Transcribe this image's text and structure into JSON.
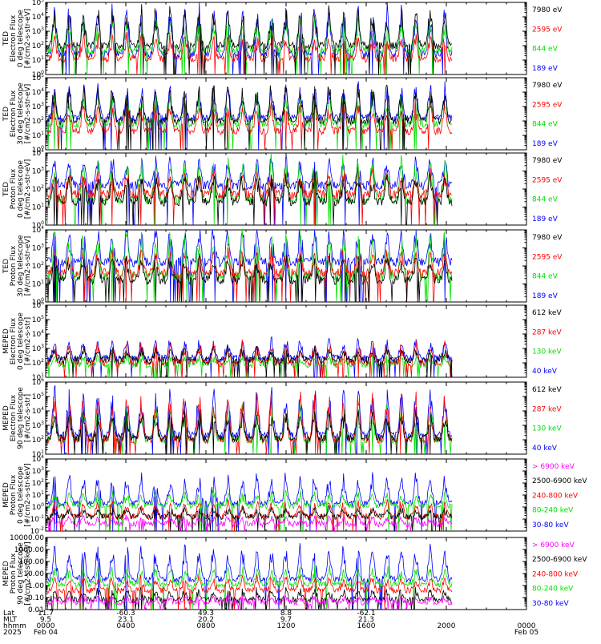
{
  "colors": {
    "blue": "#0000ff",
    "red": "#ff0000",
    "green": "#00e000",
    "black": "#000000",
    "magenta": "#ff00ff"
  },
  "chart_data": [
    {
      "type": "line",
      "ylabel_lines": [
        "TED",
        "Electron Flux",
        "0 deg telescope",
        "[#/cm2-s-str-eV]"
      ],
      "yscale": "log",
      "y_ticks": [
        "10^0",
        "10^1",
        "10^2",
        "10^3",
        "10^4",
        "10^5"
      ],
      "ylim": [
        1,
        100000
      ],
      "series": [
        {
          "name": "7980 eV",
          "color": "black",
          "base": 2.0,
          "peak": 2.3
        },
        {
          "name": "2595 eV",
          "color": "red",
          "base": 1.1,
          "peak": 1.5
        },
        {
          "name": "844 eV",
          "color": "green",
          "base": 1.7,
          "peak": 1.9
        },
        {
          "name": "189 eV",
          "color": "blue",
          "base": 1.4,
          "peak": 3.0
        }
      ]
    },
    {
      "type": "line",
      "ylabel_lines": [
        "TED",
        "Electron Flux",
        "30 deg telescope",
        "[#/cm2-s-str-eV]"
      ],
      "yscale": "log",
      "y_ticks": [
        "10^0",
        "10^1",
        "10^2",
        "10^3",
        "10^4",
        "10^5"
      ],
      "ylim": [
        1,
        100000
      ],
      "series": [
        {
          "name": "7980 eV",
          "color": "black",
          "base": 2.0,
          "peak": 2.2
        },
        {
          "name": "2595 eV",
          "color": "red",
          "base": 1.3,
          "peak": 1.7
        },
        {
          "name": "844 eV",
          "color": "green",
          "base": 1.8,
          "peak": 1.8
        },
        {
          "name": "189 eV",
          "color": "blue",
          "base": 2.2,
          "peak": 2.0
        }
      ]
    },
    {
      "type": "line",
      "ylabel_lines": [
        "TED",
        "Proton Flux",
        "0 deg telescope",
        "[#/cm2-s-str-eV]"
      ],
      "yscale": "log",
      "y_ticks": [
        "10^0",
        "10^1",
        "10^2",
        "10^3",
        "10^4"
      ],
      "ylim": [
        1,
        10000
      ],
      "series": [
        {
          "name": "7980 eV",
          "color": "black",
          "base": 1.3,
          "peak": 1.3
        },
        {
          "name": "2595 eV",
          "color": "red",
          "base": 1.7,
          "peak": 1.2
        },
        {
          "name": "844 eV",
          "color": "green",
          "base": 1.4,
          "peak": 2.1
        },
        {
          "name": "189 eV",
          "color": "blue",
          "base": 2.2,
          "peak": 1.4
        }
      ]
    },
    {
      "type": "line",
      "ylabel_lines": [
        "TED",
        "Proton Flux",
        "30 deg telescope",
        "[#/cm2-s-str-eV]"
      ],
      "yscale": "log",
      "y_ticks": [
        "10^0",
        "10^1",
        "10^2",
        "10^3",
        "10^4"
      ],
      "ylim": [
        1,
        10000
      ],
      "series": [
        {
          "name": "7980 eV",
          "color": "black",
          "base": 1.2,
          "peak": 1.2
        },
        {
          "name": "2595 eV",
          "color": "red",
          "base": 1.6,
          "peak": 1.1
        },
        {
          "name": "844 eV",
          "color": "green",
          "base": 1.4,
          "peak": 2.2
        },
        {
          "name": "189 eV",
          "color": "blue",
          "base": 2.2,
          "peak": 1.7
        }
      ]
    },
    {
      "type": "line",
      "ylabel_lines": [
        "MEPED",
        "Electron Flux",
        "0 deg telescope",
        "[#/cm2-s-str]"
      ],
      "yscale": "log",
      "y_ticks": [
        "10^1",
        "10^2",
        "10^3",
        "10^4",
        "10^5",
        "10^6"
      ],
      "ylim": [
        10,
        1000000
      ],
      "series": [
        {
          "name": "612 keV",
          "color": "black",
          "base": 2.2,
          "peak": 0.7
        },
        {
          "name": "287 keV",
          "color": "red",
          "base": 2.0,
          "peak": 1.2
        },
        {
          "name": "130 keV",
          "color": "green",
          "base": 1.9,
          "peak": 0.5
        },
        {
          "name": "40 keV",
          "color": "blue",
          "base": 2.3,
          "peak": 1.2
        }
      ]
    },
    {
      "type": "line",
      "ylabel_lines": [
        "MEPED",
        "Electron Flux",
        "90 deg telescope",
        "[#/cm2-s-str]"
      ],
      "yscale": "log",
      "y_ticks": [
        "10^1",
        "10^2",
        "10^3",
        "10^4",
        "10^5",
        "10^6"
      ],
      "ylim": [
        10,
        1000000
      ],
      "series": [
        {
          "name": "612 keV",
          "color": "black",
          "base": 2.1,
          "peak": 1.6
        },
        {
          "name": "287 keV",
          "color": "red",
          "base": 2.0,
          "peak": 2.8
        },
        {
          "name": "130 keV",
          "color": "green",
          "base": 2.0,
          "peak": 2.0
        },
        {
          "name": "40 keV",
          "color": "blue",
          "base": 2.3,
          "peak": 2.9
        }
      ]
    },
    {
      "type": "line",
      "ylabel_lines": [
        "MEPED",
        "Proton Flux",
        "0 deg telescope",
        "[#/cm2-s-str-keV]"
      ],
      "yscale": "log",
      "y_ticks": [
        "10^-2",
        "10^-1",
        "10^0",
        "10^1",
        "10^2",
        "10^3",
        "10^4"
      ],
      "ylim": [
        0.01,
        10000
      ],
      "series": [
        {
          "name": "> 6900 keV",
          "color": "magenta",
          "base": -1.4,
          "peak": 0.5
        },
        {
          "name": "2500-6900 keV",
          "color": "black",
          "base": -0.8,
          "peak": 0.6
        },
        {
          "name": "240-800 keV",
          "color": "red",
          "base": -0.8,
          "peak": 1.2
        },
        {
          "name": "80-240 keV",
          "color": "green",
          "base": 0.1,
          "peak": 1.0
        },
        {
          "name": "30-80 keV",
          "color": "blue",
          "base": 0.3,
          "peak": 2.2
        }
      ]
    },
    {
      "type": "line",
      "ylabel_lines": [
        "MEPED",
        "Proton Flux",
        "90 deg telescope",
        "[#/cm2-s-str-keV]"
      ],
      "yscale": "log",
      "y_ticks": [
        "0.01",
        "0.10",
        "1.00",
        "10.00",
        "100.00",
        "1000.00",
        "10000.00"
      ],
      "ylim": [
        0.01,
        10000
      ],
      "series": [
        {
          "name": "> 6900 keV",
          "color": "magenta",
          "base": -1.4,
          "peak": 0.4
        },
        {
          "name": "2500-6900 keV",
          "color": "black",
          "base": -1.2,
          "peak": 0.8
        },
        {
          "name": "240-800 keV",
          "color": "red",
          "base": -0.4,
          "peak": 1.0
        },
        {
          "name": "80-240 keV",
          "color": "green",
          "base": 0.1,
          "peak": 1.3
        },
        {
          "name": "30-80 keV",
          "color": "blue",
          "base": 0.5,
          "peak": 2.5
        }
      ]
    }
  ],
  "x_axis": {
    "row_labels": [
      "Lat",
      "MLT",
      "hhmm",
      "2025"
    ],
    "ticks": [
      {
        "lat": "11.7",
        "mlt": "9.5",
        "hhmm": "0000",
        "date": "Feb 04"
      },
      {
        "lat": "-60.3",
        "mlt": "23.1",
        "hhmm": "0400",
        "date": ""
      },
      {
        "lat": "49.3",
        "mlt": "20.2",
        "hhmm": "0800",
        "date": ""
      },
      {
        "lat": "8.8",
        "mlt": "9.7",
        "hhmm": "1200",
        "date": ""
      },
      {
        "lat": "-62.1",
        "mlt": "21.3",
        "hhmm": "1600",
        "date": ""
      },
      {
        "lat": "",
        "mlt": "",
        "hhmm": "2000",
        "date": ""
      },
      {
        "lat": "",
        "mlt": "",
        "hhmm": "0000",
        "date": "Feb 05"
      }
    ],
    "data_end_fraction": 0.845,
    "orbit_count": 14
  }
}
